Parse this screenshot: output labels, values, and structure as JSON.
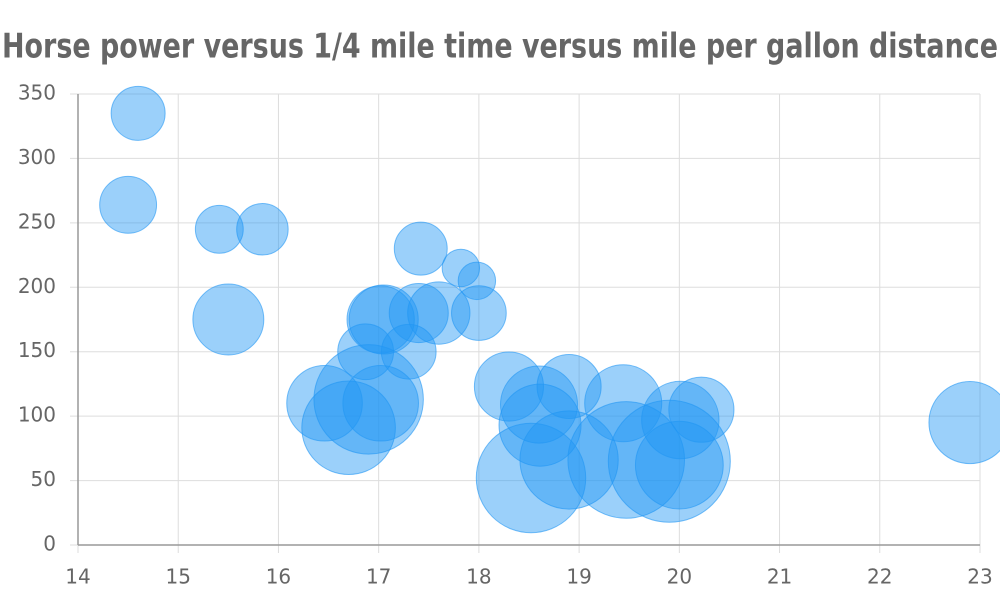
{
  "chart_data": {
    "type": "bubble",
    "title": "Horse power versus 1/4 mile time versus mile per gallon distance",
    "x": [
      16.46,
      17.02,
      18.61,
      19.44,
      17.02,
      20.22,
      15.84,
      20.0,
      22.9,
      18.3,
      18.9,
      17.4,
      17.6,
      18.0,
      17.98,
      17.82,
      17.42,
      19.47,
      18.52,
      19.9,
      20.01,
      16.87,
      17.3,
      15.41,
      17.05,
      18.9,
      16.7,
      16.9,
      14.5,
      15.5,
      14.6,
      18.6
    ],
    "values": [
      110,
      110,
      93,
      110,
      175,
      105,
      245,
      62,
      95,
      123,
      123,
      180,
      180,
      180,
      205,
      215,
      230,
      66,
      52,
      65,
      97,
      150,
      150,
      245,
      175,
      66,
      91,
      113,
      264,
      175,
      335,
      109
    ],
    "sizes": [
      21.0,
      21.0,
      22.8,
      21.4,
      18.7,
      18.1,
      14.3,
      24.4,
      22.8,
      19.2,
      17.8,
      16.4,
      17.3,
      15.2,
      10.4,
      10.4,
      14.7,
      32.4,
      30.4,
      33.9,
      21.5,
      15.5,
      15.2,
      13.3,
      19.2,
      27.3,
      26.0,
      30.4,
      15.8,
      19.7,
      15.0,
      21.4
    ],
    "color": "#2196f3",
    "xlim": [
      14,
      23
    ],
    "xticks": [
      14,
      15,
      16,
      17,
      18,
      19,
      20,
      21,
      22,
      23
    ],
    "ylim": [
      0,
      350
    ],
    "yticks": [
      0,
      50,
      100,
      150,
      200,
      250,
      300,
      350
    ],
    "grid": true
  }
}
